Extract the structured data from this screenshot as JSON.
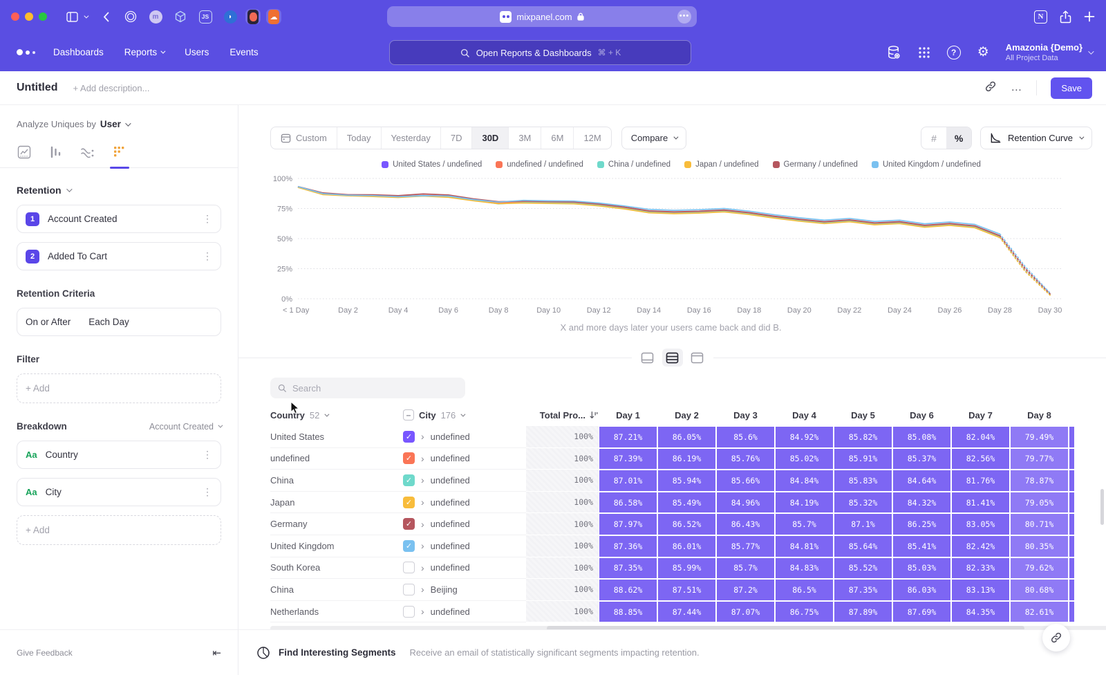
{
  "browser": {
    "url": "mixpanel.com"
  },
  "nav": {
    "links": [
      {
        "label": "Dashboards",
        "chevron": false
      },
      {
        "label": "Reports",
        "chevron": true
      },
      {
        "label": "Users",
        "chevron": false
      },
      {
        "label": "Events",
        "chevron": false
      }
    ],
    "search_placeholder": "Open Reports & Dashboards",
    "search_shortcut": "⌘ + K",
    "project_name": "Amazonia {Demo}",
    "project_scope": "All Project Data"
  },
  "title_bar": {
    "title": "Untitled",
    "description_placeholder": "+ Add description...",
    "save_label": "Save"
  },
  "sidebar": {
    "analyze_label": "Analyze Uniques by",
    "analyze_value": "User",
    "section_label": "Retention",
    "steps": [
      {
        "num": "1",
        "label": "Account Created"
      },
      {
        "num": "2",
        "label": "Added To Cart"
      }
    ],
    "criteria_label": "Retention Criteria",
    "criteria_left": "On or After",
    "criteria_right": "Each Day",
    "filter_label": "Filter",
    "add_label": "+ Add",
    "breakdown_label": "Breakdown",
    "breakdown_scope": "Account Created",
    "breakdowns": [
      {
        "type": "Aa",
        "label": "Country"
      },
      {
        "type": "Aa",
        "label": "City"
      }
    ],
    "give_feedback": "Give Feedback"
  },
  "toolbar": {
    "ranges": [
      "Custom",
      "Today",
      "Yesterday",
      "7D",
      "30D",
      "3M",
      "6M",
      "12M"
    ],
    "active_range": "30D",
    "compare_label": "Compare",
    "hash_label": "#",
    "percent_label": "%",
    "chart_type_label": "Retention Curve"
  },
  "caption": "X and more days later your users came back and did B.",
  "chart_data": {
    "type": "line",
    "title": "Retention Curve",
    "x_unit": "day",
    "x": [
      0,
      1,
      2,
      3,
      4,
      5,
      6,
      7,
      8,
      9,
      10,
      11,
      12,
      13,
      14,
      15,
      16,
      17,
      18,
      19,
      20,
      21,
      22,
      23,
      24,
      25,
      26,
      27,
      28,
      29,
      30
    ],
    "x_tick_labels": [
      "< 1 Day",
      "Day 2",
      "Day 4",
      "Day 6",
      "Day 8",
      "Day 10",
      "Day 12",
      "Day 14",
      "Day 16",
      "Day 18",
      "Day 20",
      "Day 22",
      "Day 24",
      "Day 26",
      "Day 28",
      "Day 30"
    ],
    "ylim": [
      0,
      100
    ],
    "y_ticks": [
      "0%",
      "25%",
      "50%",
      "75%",
      "100%"
    ],
    "grid": true,
    "legend_position": "top",
    "dashed_from_x": 28,
    "series": [
      {
        "name": "United States / undefined",
        "color": "#7856ff",
        "values": [
          93.0,
          87.21,
          86.05,
          85.6,
          84.92,
          85.82,
          85.08,
          82.04,
          79.49,
          80.3,
          79.9,
          79.6,
          77.9,
          75.4,
          72.2,
          71.4,
          71.9,
          72.9,
          70.7,
          67.7,
          65.2,
          63.2,
          64.7,
          62.2,
          63.2,
          60.2,
          61.7,
          59.7,
          51.5,
          24.0,
          3.5
        ]
      },
      {
        "name": "undefined / undefined",
        "color": "#fa7556",
        "values": [
          93.1,
          87.39,
          86.19,
          85.76,
          85.02,
          85.91,
          85.37,
          82.56,
          79.77,
          80.5,
          80.1,
          79.8,
          78.1,
          75.6,
          72.4,
          71.6,
          72.1,
          73.1,
          70.9,
          67.9,
          65.4,
          63.4,
          64.9,
          62.4,
          63.4,
          60.4,
          61.9,
          59.9,
          51.7,
          24.5,
          3.8
        ]
      },
      {
        "name": "China / undefined",
        "color": "#6fd9cb",
        "values": [
          92.8,
          87.01,
          85.94,
          85.66,
          84.84,
          85.83,
          84.64,
          81.76,
          78.87,
          80.0,
          79.6,
          79.3,
          77.6,
          75.1,
          71.9,
          71.1,
          71.6,
          72.6,
          70.4,
          67.4,
          64.9,
          62.9,
          64.4,
          61.9,
          62.9,
          59.9,
          61.4,
          59.4,
          51.2,
          23.5,
          3.2
        ]
      },
      {
        "name": "Japan / undefined",
        "color": "#f8bc3b",
        "values": [
          92.6,
          86.58,
          85.49,
          84.96,
          84.19,
          85.32,
          84.32,
          81.41,
          79.05,
          79.6,
          79.2,
          78.9,
          77.2,
          74.7,
          71.5,
          70.7,
          71.2,
          72.2,
          70.0,
          67.0,
          64.5,
          62.5,
          64.0,
          61.5,
          62.5,
          59.5,
          61.0,
          59.0,
          50.8,
          23.0,
          3.0
        ]
      },
      {
        "name": "Germany / undefined",
        "color": "#b5565e",
        "values": [
          93.3,
          87.97,
          86.52,
          86.43,
          85.7,
          87.1,
          86.25,
          83.05,
          80.71,
          81.2,
          80.8,
          80.5,
          78.8,
          76.3,
          73.1,
          72.3,
          72.8,
          73.8,
          71.6,
          68.6,
          66.1,
          64.1,
          65.6,
          63.1,
          64.1,
          61.1,
          62.6,
          60.6,
          52.4,
          25.5,
          4.2
        ]
      },
      {
        "name": "United Kingdom / undefined",
        "color": "#7ac1f0",
        "values": [
          93.2,
          87.36,
          86.01,
          85.77,
          84.81,
          85.64,
          85.41,
          82.42,
          80.35,
          81.8,
          81.4,
          81.2,
          79.6,
          77.2,
          74.3,
          73.5,
          74.0,
          75.0,
          72.8,
          69.8,
          67.3,
          65.3,
          66.8,
          64.3,
          65.3,
          62.3,
          63.8,
          61.8,
          53.8,
          27.0,
          4.8
        ]
      }
    ]
  },
  "table": {
    "search_placeholder": "Search",
    "country_label": "Country",
    "country_count": "52",
    "city_label": "City",
    "city_count": "176",
    "total_label": "Total Pro...",
    "day_headers": [
      "Day 1",
      "Day 2",
      "Day 3",
      "Day 4",
      "Day 5",
      "Day 6",
      "Day 7",
      "Day 8"
    ],
    "rows": [
      {
        "country": "United States",
        "checked": true,
        "color": "#7856ff",
        "city": "undefined",
        "total": "100%",
        "days": [
          "87.21%",
          "86.05%",
          "85.6%",
          "84.92%",
          "85.82%",
          "85.08%",
          "82.04%",
          "79.49%"
        ]
      },
      {
        "country": "undefined",
        "checked": true,
        "color": "#fa7556",
        "city": "undefined",
        "total": "100%",
        "days": [
          "87.39%",
          "86.19%",
          "85.76%",
          "85.02%",
          "85.91%",
          "85.37%",
          "82.56%",
          "79.77%"
        ]
      },
      {
        "country": "China",
        "checked": true,
        "color": "#6fd9cb",
        "city": "undefined",
        "total": "100%",
        "days": [
          "87.01%",
          "85.94%",
          "85.66%",
          "84.84%",
          "85.83%",
          "84.64%",
          "81.76%",
          "78.87%"
        ]
      },
      {
        "country": "Japan",
        "checked": true,
        "color": "#f8bc3b",
        "city": "undefined",
        "total": "100%",
        "days": [
          "86.58%",
          "85.49%",
          "84.96%",
          "84.19%",
          "85.32%",
          "84.32%",
          "81.41%",
          "79.05%"
        ]
      },
      {
        "country": "Germany",
        "checked": true,
        "color": "#b5565e",
        "city": "undefined",
        "total": "100%",
        "days": [
          "87.97%",
          "86.52%",
          "86.43%",
          "85.7%",
          "87.1%",
          "86.25%",
          "83.05%",
          "80.71%"
        ]
      },
      {
        "country": "United Kingdom",
        "checked": true,
        "color": "#7ac1f0",
        "city": "undefined",
        "total": "100%",
        "days": [
          "87.36%",
          "86.01%",
          "85.77%",
          "84.81%",
          "85.64%",
          "85.41%",
          "82.42%",
          "80.35%"
        ]
      },
      {
        "country": "South Korea",
        "checked": false,
        "color": "",
        "city": "undefined",
        "total": "100%",
        "days": [
          "87.35%",
          "85.99%",
          "85.7%",
          "84.83%",
          "85.52%",
          "85.03%",
          "82.33%",
          "79.62%"
        ]
      },
      {
        "country": "China",
        "checked": false,
        "color": "",
        "city": "Beijing",
        "total": "100%",
        "days": [
          "88.62%",
          "87.51%",
          "87.2%",
          "86.5%",
          "87.35%",
          "86.03%",
          "83.13%",
          "80.68%"
        ]
      },
      {
        "country": "Netherlands",
        "checked": false,
        "color": "",
        "city": "undefined",
        "total": "100%",
        "days": [
          "88.85%",
          "87.44%",
          "87.07%",
          "86.75%",
          "87.89%",
          "87.69%",
          "84.35%",
          "82.61%"
        ]
      }
    ]
  },
  "footer": {
    "title": "Find Interesting Segments",
    "subtitle": "Receive an email of statistically significant segments impacting retention."
  }
}
